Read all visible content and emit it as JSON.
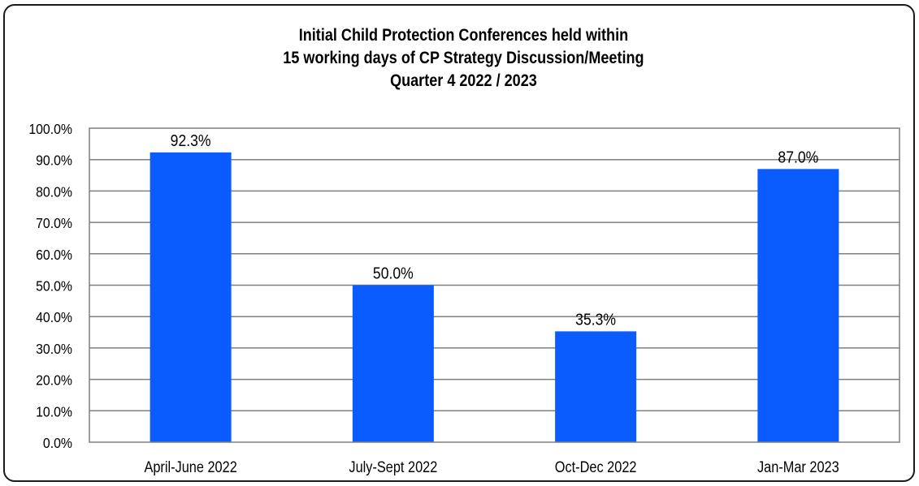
{
  "chart_data": {
    "type": "bar",
    "title_lines": [
      "Initial Child Protection Conferences held within",
      "15 working days of CP Strategy Discussion/Meeting",
      "Quarter 4 2022 / 2023"
    ],
    "categories": [
      "April-June 2022",
      "July-Sept 2022",
      "Oct-Dec 2022",
      "Jan-Mar 2023"
    ],
    "values": [
      92.3,
      50.0,
      35.3,
      87.0
    ],
    "data_labels": [
      "92.3%",
      "50.0%",
      "35.3%",
      "87.0%"
    ],
    "y_ticks": [
      "0.0%",
      "10.0%",
      "20.0%",
      "30.0%",
      "40.0%",
      "50.0%",
      "60.0%",
      "70.0%",
      "80.0%",
      "90.0%",
      "100.0%"
    ],
    "ylim": [
      0,
      100
    ],
    "grid": true,
    "legend": "none",
    "bar_color": "#0a5cff",
    "grid_color": "#7f7f7f",
    "plot_border_color": "#7f7f7f"
  }
}
